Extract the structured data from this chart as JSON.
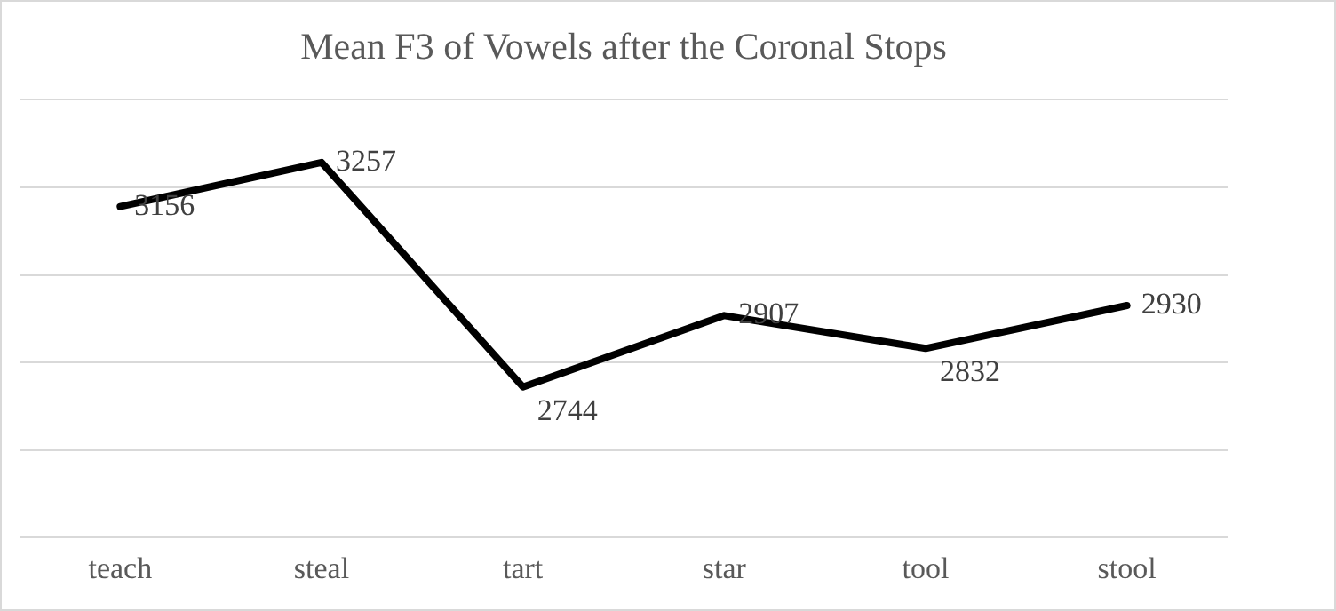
{
  "chart_data": {
    "type": "line",
    "title": "Mean F3 of Vowels after the Coronal Stops",
    "categories": [
      "teach",
      "steal",
      "tart",
      "star",
      "tool",
      "stool"
    ],
    "series": [
      {
        "color": "#000000",
        "values": [
          3156,
          3257,
          2744,
          2907,
          2832,
          2930
        ]
      }
    ],
    "ylim": [
      2400,
      3400
    ],
    "yticks": [
      {
        "value": 2400,
        "label": null
      },
      {
        "value": 2600,
        "label": null
      },
      {
        "value": 2800,
        "label": null
      },
      {
        "value": 3000,
        "label": null
      },
      {
        "value": 3200,
        "label": null
      },
      {
        "value": 3400,
        "label": null
      }
    ],
    "tick_labels": "x",
    "grid": "y",
    "legend": false,
    "marker": "none",
    "line_style": "solid",
    "data_labels": true
  }
}
